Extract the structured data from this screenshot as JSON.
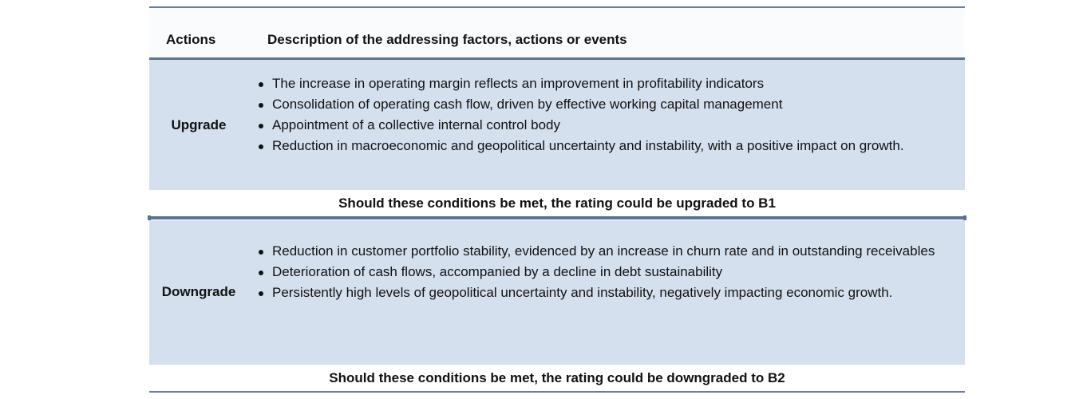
{
  "header": {
    "actions_label": "Actions",
    "description_label": "Description of the addressing factors, actions or events"
  },
  "upgrade": {
    "label": "Upgrade",
    "items": [
      "The increase in operating margin reflects an improvement in profitability indicators",
      "Consolidation of operating cash flow, driven by effective working capital management",
      "Appointment of a collective internal control body",
      "Reduction in macroeconomic and geopolitical uncertainty and instability, with a positive impact on growth."
    ],
    "note": "Should these conditions be met, the rating could be upgraded to B1"
  },
  "downgrade": {
    "label": "Downgrade",
    "items": [
      "Reduction in customer portfolio stability, evidenced by an increase in churn rate and in outstanding receivables",
      "Deterioration of cash flows, accompanied by a decline in debt sustainability",
      "Persistently high levels of geopolitical uncertainty and instability, negatively impacting economic growth."
    ],
    "note": "Should these conditions be met, the rating could be downgraded to B2"
  },
  "colors": {
    "row_fill": "#d5e0ef",
    "rule": "#5b7393",
    "header_fill": "#fafbfd"
  }
}
